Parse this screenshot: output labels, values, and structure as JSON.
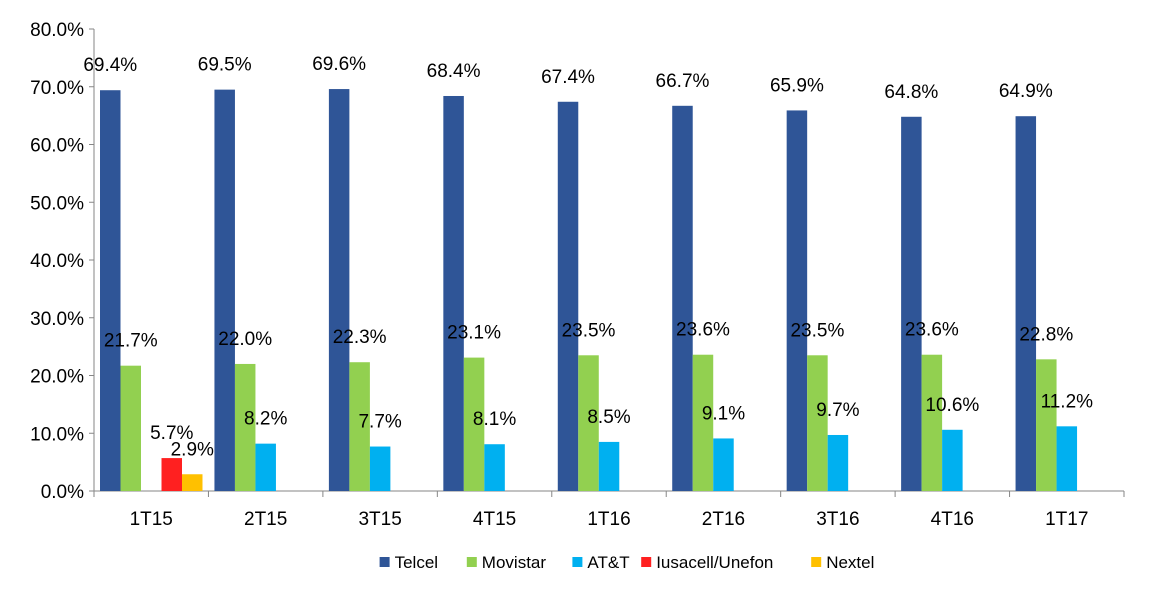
{
  "chart_data": {
    "type": "bar",
    "title": "",
    "xlabel": "",
    "ylabel": "",
    "ylim": [
      0,
      80
    ],
    "y_ticks": [
      "0.0%",
      "10.0%",
      "20.0%",
      "30.0%",
      "40.0%",
      "50.0%",
      "60.0%",
      "70.0%",
      "80.0%"
    ],
    "grid": false,
    "legend_position": "bottom",
    "categories": [
      "1T15",
      "2T15",
      "3T15",
      "4T15",
      "1T16",
      "2T16",
      "3T16",
      "4T16",
      "1T17"
    ],
    "series": [
      {
        "name": "Telcel",
        "color": "#2F5597",
        "values": [
          69.4,
          69.5,
          69.6,
          68.4,
          67.4,
          66.7,
          65.9,
          64.8,
          64.9
        ],
        "labels": [
          "69.4%",
          "69.5%",
          "69.6%",
          "68.4%",
          "67.4%",
          "66.7%",
          "65.9%",
          "64.8%",
          "64.9%"
        ]
      },
      {
        "name": "Movistar",
        "color": "#92D050",
        "values": [
          21.7,
          22.0,
          22.3,
          23.1,
          23.5,
          23.6,
          23.5,
          23.6,
          22.8
        ],
        "labels": [
          "21.7%",
          "22.0%",
          "22.3%",
          "23.1%",
          "23.5%",
          "23.6%",
          "23.5%",
          "23.6%",
          "22.8%"
        ]
      },
      {
        "name": "AT&T",
        "color": "#00B0F0",
        "values": [
          null,
          8.2,
          7.7,
          8.1,
          8.5,
          9.1,
          9.7,
          10.6,
          11.2
        ],
        "labels": [
          null,
          "8.2%",
          "7.7%",
          "8.1%",
          "8.5%",
          "9.1%",
          "9.7%",
          "10.6%",
          "11.2%"
        ]
      },
      {
        "name": "Iusacell/Unefon",
        "color": "#FF2020",
        "values": [
          5.7,
          null,
          null,
          null,
          null,
          null,
          null,
          null,
          null
        ],
        "labels": [
          "5.7%",
          null,
          null,
          null,
          null,
          null,
          null,
          null,
          null
        ]
      },
      {
        "name": "Nextel",
        "color": "#FFC000",
        "values": [
          2.9,
          null,
          null,
          null,
          null,
          null,
          null,
          null,
          null
        ],
        "labels": [
          "2.9%",
          null,
          null,
          null,
          null,
          null,
          null,
          null,
          null
        ]
      }
    ]
  }
}
